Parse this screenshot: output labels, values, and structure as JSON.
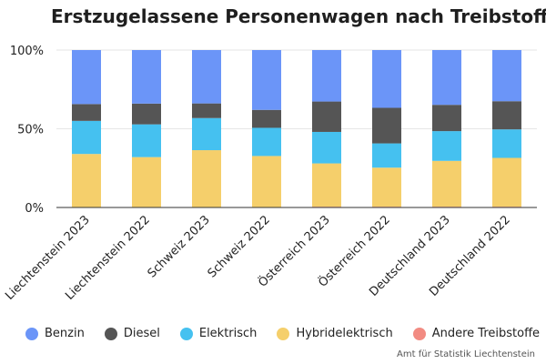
{
  "title": "Erstzugelassene Personenwagen nach Treibstoff",
  "source": "Amt für Statistik Liechtenstein",
  "chart_data": {
    "type": "bar",
    "stacked": true,
    "percent": true,
    "title": "Erstzugelassene Personenwagen nach Treibstoff",
    "categories": [
      "Liechtenstein 2023",
      "Liechtenstein 2022",
      "Schweiz 2023",
      "Schweiz 2022",
      "Österreich 2023",
      "Österreich 2022",
      "Deutschland 2023",
      "Deutschland 2022"
    ],
    "series": [
      {
        "name": "Andere Treibstoffe",
        "color": "#f28b82",
        "values": [
          0.2,
          0.3,
          0.1,
          0.1,
          0.5,
          0.5,
          0.5,
          0.5
        ]
      },
      {
        "name": "Hybridelektrisch",
        "color": "#f5cf6b",
        "values": [
          33.8,
          31.7,
          36.3,
          32.6,
          27.5,
          24.8,
          29.1,
          31.0
        ]
      },
      {
        "name": "Elektrisch",
        "color": "#45c1f0",
        "values": [
          21.0,
          20.8,
          20.4,
          17.9,
          20.0,
          15.4,
          18.9,
          18.1
        ]
      },
      {
        "name": "Diesel",
        "color": "#555555",
        "values": [
          10.7,
          13.2,
          9.3,
          11.4,
          19.3,
          22.6,
          16.7,
          17.9
        ]
      },
      {
        "name": "Benzin",
        "color": "#6b95f8",
        "values": [
          34.3,
          34.0,
          33.9,
          38.0,
          32.7,
          36.7,
          34.8,
          32.5
        ]
      }
    ],
    "legend_order": [
      "Benzin",
      "Diesel",
      "Elektrisch",
      "Hybridelektrisch",
      "Andere Treibstoffe"
    ],
    "yticks": [
      "0%",
      "50%",
      "100%"
    ],
    "ylim": [
      0,
      100
    ],
    "legend_position": "bottom",
    "grid": true
  }
}
